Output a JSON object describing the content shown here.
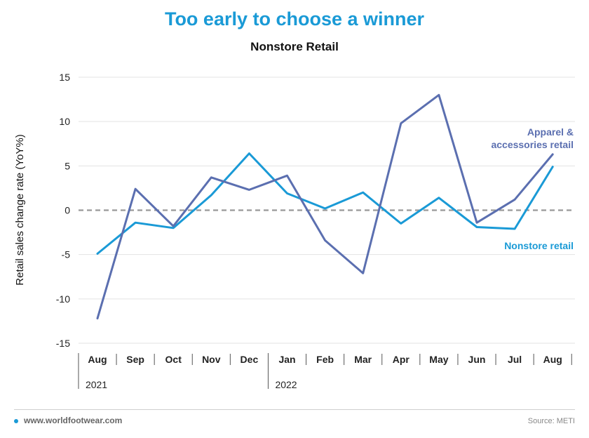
{
  "header": {
    "title": "Too early to choose a winner",
    "subtitle": "Nonstore Retail"
  },
  "footer": {
    "url": "www.worldfootwear.com",
    "source": "Source: METI"
  },
  "chart_data": {
    "type": "line",
    "title": "Too early to choose a winner",
    "subtitle": "Nonstore Retail",
    "ylabel": "Retail sales change rate (YoY%)",
    "xlabel": "",
    "ylim": [
      -15,
      15
    ],
    "yticks": [
      15,
      10,
      5,
      0,
      -5,
      -10,
      -15
    ],
    "categories": [
      "Aug",
      "Sep",
      "Oct",
      "Nov",
      "Dec",
      "Jan",
      "Feb",
      "Mar",
      "Apr",
      "May",
      "Jun",
      "Jul",
      "Aug"
    ],
    "year_groups": [
      {
        "label": "2021",
        "start_index": 0
      },
      {
        "label": "2022",
        "start_index": 5
      }
    ],
    "grid": true,
    "zero_line": "dashed",
    "series": [
      {
        "name": "Nonstore retail",
        "color": "#1a9ad6",
        "values": [
          -4.9,
          -1.4,
          -2.0,
          1.7,
          6.4,
          1.9,
          0.2,
          2.0,
          -1.5,
          1.4,
          -1.9,
          -2.1,
          4.9
        ]
      },
      {
        "name": "Apparel & accessories retail",
        "label_lines": [
          "Apparel &",
          "accessories retail"
        ],
        "color": "#5b6fb0",
        "values": [
          -12.2,
          2.4,
          -1.8,
          3.7,
          2.3,
          3.9,
          -3.4,
          -7.1,
          9.8,
          13.0,
          -1.4,
          1.2,
          6.3
        ]
      }
    ]
  }
}
